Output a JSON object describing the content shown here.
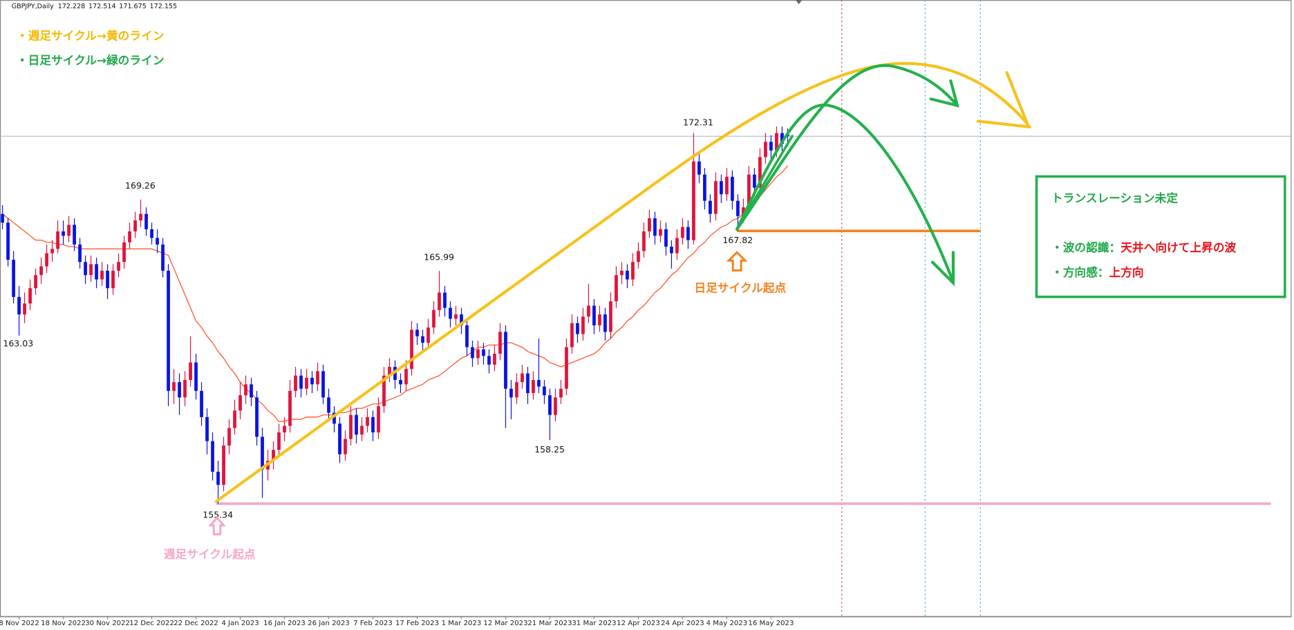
{
  "chart_data": {
    "type": "candlestick",
    "header": {
      "symbol": "GBPJPY,Daily",
      "ohlc": [
        172.228,
        172.514,
        171.675,
        172.155
      ]
    },
    "categories": [
      null,
      null,
      null,
      "8 Nov 2022",
      null,
      null,
      null,
      null,
      null,
      null,
      null,
      "18 Nov 2022",
      null,
      null,
      null,
      null,
      null,
      null,
      null,
      "30 Nov 2022",
      null,
      null,
      null,
      null,
      null,
      null,
      null,
      "12 Dec 2022",
      null,
      null,
      null,
      null,
      null,
      null,
      null,
      "22 Dec 2022",
      null,
      null,
      null,
      null,
      null,
      null,
      null,
      "4 Jan 2023",
      null,
      null,
      null,
      null,
      null,
      null,
      null,
      "16 Jan 2023",
      null,
      null,
      null,
      null,
      null,
      null,
      null,
      "26 Jan 2023",
      null,
      null,
      null,
      null,
      null,
      null,
      null,
      "7 Feb 2023",
      null,
      null,
      null,
      null,
      null,
      null,
      null,
      "17 Feb 2023",
      null,
      null,
      null,
      null,
      null,
      null,
      null,
      "1 Mar 2023",
      null,
      null,
      null,
      null,
      null,
      null,
      null,
      "12 Mar 2023",
      null,
      null,
      null,
      null,
      null,
      null,
      null,
      "21 Mar 2023",
      null,
      null,
      null,
      null,
      null,
      null,
      null,
      "31 Mar 2023",
      null,
      null,
      null,
      null,
      null,
      null,
      null,
      "12 Apr 2023",
      null,
      null,
      null,
      null,
      null,
      null,
      null,
      "24 Apr 2023",
      null,
      null,
      null,
      null,
      null,
      null,
      null,
      "4 May 2023",
      null,
      null,
      null,
      null,
      null,
      null,
      null,
      "16 May 2023",
      null,
      null,
      null
    ],
    "candles": [
      [
        168.6,
        169.0,
        167.9,
        168.2
      ],
      [
        168.2,
        168.4,
        166.2,
        166.5
      ],
      [
        166.5,
        166.9,
        164.5,
        164.8
      ],
      [
        164.8,
        165.3,
        163.03,
        164.0
      ],
      [
        164.0,
        165.0,
        163.6,
        164.5
      ],
      [
        164.5,
        165.6,
        164.2,
        165.2
      ],
      [
        165.2,
        166.1,
        164.9,
        165.8
      ],
      [
        165.8,
        166.6,
        165.4,
        166.2
      ],
      [
        166.2,
        167.2,
        165.9,
        166.8
      ],
      [
        166.8,
        167.4,
        166.4,
        167.0
      ],
      [
        167.0,
        168.3,
        166.8,
        167.8
      ],
      [
        167.8,
        168.3,
        167.2,
        167.6
      ],
      [
        167.6,
        168.5,
        167.3,
        168.1
      ],
      [
        168.1,
        168.4,
        166.9,
        167.2
      ],
      [
        167.2,
        167.5,
        166.1,
        166.4
      ],
      [
        166.4,
        166.7,
        165.4,
        165.8
      ],
      [
        165.8,
        166.7,
        165.5,
        166.3
      ],
      [
        166.3,
        166.6,
        165.2,
        165.6
      ],
      [
        165.6,
        166.4,
        165.3,
        166.0
      ],
      [
        166.0,
        166.3,
        164.7,
        165.2
      ],
      [
        165.2,
        166.3,
        164.9,
        166.0
      ],
      [
        166.0,
        166.8,
        165.7,
        166.4
      ],
      [
        166.4,
        167.6,
        166.1,
        167.3
      ],
      [
        167.3,
        168.2,
        167.0,
        167.8
      ],
      [
        167.8,
        168.7,
        167.5,
        168.3
      ],
      [
        168.3,
        169.26,
        168.0,
        168.6
      ],
      [
        168.6,
        168.9,
        167.6,
        167.9
      ],
      [
        167.9,
        168.2,
        167.2,
        167.5
      ],
      [
        167.5,
        167.9,
        166.8,
        167.2
      ],
      [
        167.2,
        167.5,
        165.7,
        166.0
      ],
      [
        166.0,
        166.3,
        159.8,
        160.5
      ],
      [
        160.5,
        161.5,
        159.9,
        160.9
      ],
      [
        160.9,
        161.3,
        159.4,
        160.2
      ],
      [
        160.2,
        161.4,
        159.8,
        161.0
      ],
      [
        161.0,
        163.0,
        160.7,
        161.8
      ],
      [
        161.8,
        162.2,
        160.1,
        160.5
      ],
      [
        160.5,
        160.9,
        158.9,
        159.3
      ],
      [
        159.3,
        159.7,
        157.6,
        158.2
      ],
      [
        158.2,
        158.6,
        156.4,
        156.8
      ],
      [
        156.8,
        157.3,
        155.34,
        156.2
      ],
      [
        156.2,
        158.4,
        155.9,
        158.0
      ],
      [
        158.0,
        159.2,
        157.6,
        158.8
      ],
      [
        158.8,
        160.1,
        158.5,
        159.6
      ],
      [
        159.6,
        160.9,
        159.2,
        160.3
      ],
      [
        160.3,
        161.2,
        159.9,
        160.8
      ],
      [
        160.8,
        161.1,
        159.8,
        160.2
      ],
      [
        160.2,
        160.5,
        158.0,
        158.4
      ],
      [
        158.4,
        158.8,
        155.6,
        156.9
      ],
      [
        156.9,
        157.8,
        156.4,
        157.3
      ],
      [
        157.3,
        158.2,
        156.9,
        157.8
      ],
      [
        157.8,
        159.0,
        157.5,
        158.6
      ],
      [
        158.6,
        159.3,
        158.2,
        158.9
      ],
      [
        158.9,
        161.0,
        158.6,
        160.5
      ],
      [
        160.5,
        161.6,
        160.2,
        161.2
      ],
      [
        161.2,
        161.5,
        160.2,
        160.6
      ],
      [
        160.6,
        161.5,
        160.3,
        161.1
      ],
      [
        161.1,
        161.4,
        160.4,
        160.8
      ],
      [
        160.8,
        161.8,
        160.5,
        161.4
      ],
      [
        161.4,
        161.7,
        159.9,
        160.2
      ],
      [
        160.2,
        160.6,
        159.1,
        159.5
      ],
      [
        159.5,
        159.8,
        158.6,
        159.0
      ],
      [
        159.0,
        159.3,
        157.2,
        157.6
      ],
      [
        157.6,
        158.7,
        157.3,
        158.3
      ],
      [
        158.3,
        159.8,
        158.0,
        159.4
      ],
      [
        159.4,
        159.7,
        158.1,
        158.5
      ],
      [
        158.5,
        159.3,
        158.2,
        158.9
      ],
      [
        158.9,
        159.7,
        158.6,
        159.3
      ],
      [
        159.3,
        159.6,
        158.2,
        158.6
      ],
      [
        158.6,
        160.2,
        158.3,
        159.8
      ],
      [
        159.8,
        161.6,
        159.5,
        161.2
      ],
      [
        161.2,
        162.0,
        160.9,
        161.6
      ],
      [
        161.6,
        161.9,
        160.6,
        161.0
      ],
      [
        161.0,
        161.3,
        160.4,
        160.8
      ],
      [
        160.8,
        161.9,
        160.5,
        161.5
      ],
      [
        161.5,
        163.7,
        161.2,
        163.3
      ],
      [
        163.3,
        163.6,
        162.6,
        163.0
      ],
      [
        163.0,
        163.3,
        162.3,
        162.7
      ],
      [
        162.7,
        163.8,
        162.4,
        163.4
      ],
      [
        163.4,
        164.6,
        163.1,
        164.2
      ],
      [
        164.2,
        165.99,
        163.9,
        165.0
      ],
      [
        165.0,
        165.3,
        163.9,
        164.3
      ],
      [
        164.3,
        164.6,
        163.4,
        163.8
      ],
      [
        163.8,
        164.4,
        163.5,
        164.0
      ],
      [
        164.0,
        164.3,
        163.1,
        163.5
      ],
      [
        163.5,
        163.8,
        162.1,
        162.5
      ],
      [
        162.5,
        162.8,
        161.6,
        162.0
      ],
      [
        162.0,
        162.8,
        161.7,
        162.4
      ],
      [
        162.4,
        162.7,
        161.7,
        162.1
      ],
      [
        162.1,
        162.4,
        161.3,
        161.7
      ],
      [
        161.7,
        162.6,
        161.4,
        162.2
      ],
      [
        162.2,
        163.6,
        161.9,
        163.2
      ],
      [
        163.2,
        163.5,
        158.8,
        160.6
      ],
      [
        160.6,
        161.0,
        159.2,
        160.2
      ],
      [
        160.2,
        161.3,
        159.9,
        160.9
      ],
      [
        160.9,
        161.7,
        160.6,
        161.3
      ],
      [
        161.3,
        161.6,
        159.9,
        160.4
      ],
      [
        160.4,
        161.4,
        160.1,
        161.0
      ],
      [
        161.0,
        162.9,
        160.4,
        160.7
      ],
      [
        160.7,
        161.0,
        159.9,
        160.3
      ],
      [
        160.3,
        160.6,
        158.25,
        159.4
      ],
      [
        159.4,
        160.6,
        159.1,
        160.2
      ],
      [
        160.2,
        161.0,
        159.9,
        160.6
      ],
      [
        160.6,
        162.9,
        160.3,
        162.5
      ],
      [
        162.5,
        164.0,
        162.2,
        163.6
      ],
      [
        163.6,
        163.9,
        162.7,
        163.1
      ],
      [
        163.1,
        164.3,
        162.8,
        163.9
      ],
      [
        163.9,
        165.4,
        163.6,
        164.4
      ],
      [
        164.4,
        164.7,
        163.1,
        163.5
      ],
      [
        163.5,
        164.4,
        163.2,
        164.0
      ],
      [
        164.0,
        164.3,
        162.8,
        163.2
      ],
      [
        163.2,
        165.0,
        162.9,
        164.6
      ],
      [
        164.6,
        166.2,
        164.3,
        165.8
      ],
      [
        165.8,
        166.4,
        165.4,
        166.0
      ],
      [
        166.0,
        166.3,
        165.2,
        165.6
      ],
      [
        165.6,
        166.8,
        165.3,
        166.4
      ],
      [
        166.4,
        167.3,
        166.1,
        166.9
      ],
      [
        166.9,
        168.2,
        166.6,
        167.8
      ],
      [
        167.8,
        168.8,
        167.5,
        168.4
      ],
      [
        168.4,
        168.7,
        167.2,
        167.6
      ],
      [
        167.6,
        168.3,
        167.3,
        167.9
      ],
      [
        167.9,
        168.2,
        166.7,
        167.1
      ],
      [
        167.1,
        167.4,
        166.1,
        166.8
      ],
      [
        166.8,
        167.9,
        166.5,
        167.5
      ],
      [
        167.5,
        168.4,
        167.2,
        168.0
      ],
      [
        168.0,
        168.3,
        167.0,
        167.4
      ],
      [
        167.4,
        172.31,
        167.2,
        171.0
      ],
      [
        171.0,
        171.4,
        170.0,
        170.4
      ],
      [
        170.4,
        170.7,
        168.8,
        169.2
      ],
      [
        169.2,
        169.5,
        168.2,
        168.6
      ],
      [
        168.6,
        170.5,
        168.3,
        170.1
      ],
      [
        170.1,
        170.4,
        169.1,
        169.5
      ],
      [
        169.5,
        170.7,
        169.2,
        170.3
      ],
      [
        170.3,
        170.6,
        168.8,
        169.2
      ],
      [
        169.2,
        169.5,
        167.82,
        168.5
      ],
      [
        168.5,
        169.3,
        168.2,
        168.9
      ],
      [
        168.9,
        170.8,
        168.6,
        170.4
      ],
      [
        170.4,
        170.7,
        169.4,
        169.8
      ],
      [
        169.8,
        171.6,
        169.5,
        171.2
      ],
      [
        171.2,
        172.3,
        170.9,
        171.9
      ],
      [
        171.9,
        172.2,
        171.1,
        171.5
      ],
      [
        171.5,
        172.6,
        171.2,
        172.3
      ],
      [
        172.3,
        172.6,
        171.4,
        171.8
      ],
      [
        172.228,
        172.514,
        171.675,
        172.155
      ]
    ],
    "up_color": "#e0143c",
    "down_color": "#0a14e6",
    "ma": {
      "color": "#ff4a1c",
      "values": [
        168.6,
        168.4,
        168.2,
        168.0,
        167.8,
        167.6,
        167.4,
        167.4,
        167.3,
        167.3,
        167.2,
        167.2,
        167.1,
        167.1,
        167.0,
        167.0,
        167.0,
        167.0,
        167.0,
        167.0,
        167.0,
        167.0,
        167.0,
        167.0,
        167.0,
        167.0,
        167.0,
        167.0,
        166.9,
        166.8,
        166.7,
        166.1,
        165.5,
        164.9,
        164.3,
        163.7,
        163.4,
        163.0,
        162.7,
        162.3,
        162.0,
        161.6,
        161.3,
        160.9,
        160.6,
        160.4,
        160.1,
        159.9,
        159.6,
        159.4,
        159.1,
        159.1,
        159.2,
        159.2,
        159.2,
        159.3,
        159.3,
        159.3,
        159.4,
        159.4,
        159.4,
        159.5,
        159.5,
        159.6,
        159.7,
        159.7,
        159.8,
        159.9,
        159.9,
        160.0,
        160.1,
        160.2,
        160.3,
        160.5,
        160.6,
        160.7,
        160.8,
        161.0,
        161.1,
        161.2,
        161.4,
        161.6,
        161.8,
        162.0,
        162.1,
        162.3,
        162.5,
        162.5,
        162.6,
        162.6,
        162.6,
        162.7,
        162.7,
        162.6,
        162.5,
        162.3,
        162.2,
        162.1,
        162.0,
        161.8,
        161.7,
        161.6,
        161.7,
        161.8,
        161.9,
        162.0,
        162.1,
        162.2,
        162.4,
        162.7,
        162.9,
        163.2,
        163.4,
        163.7,
        163.9,
        164.2,
        164.4,
        164.7,
        165.0,
        165.2,
        165.5,
        165.8,
        166.0,
        166.3,
        166.6,
        166.8,
        167.1,
        167.3,
        167.6,
        167.8,
        168.0,
        168.1,
        168.3,
        168.4,
        168.6,
        168.9,
        169.2,
        169.4,
        169.7,
        170.0,
        170.3,
        170.5,
        170.8
      ]
    },
    "ylim": [
      150.16,
      178.39
    ],
    "price_labels": [
      169.26,
      172.31,
      163.03,
      165.99,
      158.25,
      155.34,
      167.82
    ],
    "notes": [
      "・週足サイクル→黄のライン",
      "・日足サイクル→緑のライン"
    ],
    "markers": [
      "週足サイクル起点",
      "日足サイクル起点"
    ],
    "box": {
      "title": "トランスレーション未定",
      "rows": [
        [
          "・波の認識：",
          "天井へ向けて上昇の波"
        ],
        [
          "・方向感：",
          "上方向"
        ]
      ]
    }
  }
}
